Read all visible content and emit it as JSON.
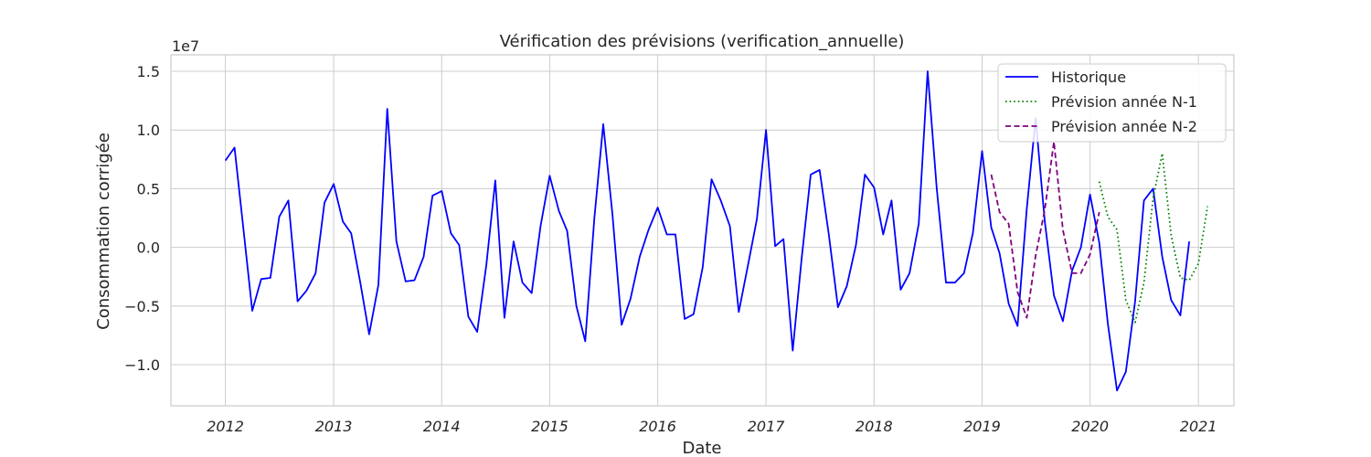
{
  "chart_data": {
    "type": "line",
    "title": "Vérification des prévisions (verification_annuelle)",
    "xlabel": "Date",
    "ylabel": "Consommation corrigée",
    "y_offset_label": "1e7",
    "xlim": [
      "2011-07-01",
      "2021-05-01"
    ],
    "ylim": [
      -1.35,
      1.64
    ],
    "x_ticks": [
      "2012",
      "2013",
      "2014",
      "2015",
      "2016",
      "2017",
      "2018",
      "2019",
      "2020",
      "2021"
    ],
    "y_ticks": [
      -1.0,
      -0.5,
      0.0,
      0.5,
      1.0,
      1.5
    ],
    "y_tick_labels": [
      "−1.0",
      "−0.5",
      "0.0",
      "0.5",
      "1.0",
      "1.5"
    ],
    "grid": true,
    "legend_position": "top-right",
    "series": [
      {
        "name": "Historique",
        "color": "#0000ff",
        "style": "solid",
        "start": "2012-01",
        "values": [
          0.74,
          0.85,
          0.18,
          -0.54,
          -0.27,
          -0.26,
          0.26,
          0.4,
          -0.46,
          -0.37,
          -0.22,
          0.38,
          0.54,
          0.22,
          0.12,
          -0.3,
          -0.74,
          -0.32,
          1.18,
          0.05,
          -0.29,
          -0.28,
          -0.08,
          0.44,
          0.48,
          0.12,
          0.02,
          -0.59,
          -0.72,
          -0.15,
          0.57,
          -0.6,
          0.05,
          -0.3,
          -0.39,
          0.18,
          0.61,
          0.31,
          0.14,
          -0.5,
          -0.8,
          0.25,
          1.05,
          0.28,
          -0.66,
          -0.44,
          -0.08,
          0.15,
          0.34,
          0.11,
          0.11,
          -0.61,
          -0.57,
          -0.17,
          0.58,
          0.4,
          0.18,
          -0.55,
          -0.15,
          0.24,
          1.0,
          0.01,
          0.07,
          -0.88,
          -0.1,
          0.62,
          0.66,
          0.11,
          -0.51,
          -0.33,
          0.02,
          0.62,
          0.51,
          0.11,
          0.4,
          -0.36,
          -0.22,
          0.2,
          1.5,
          0.5,
          -0.3,
          -0.3,
          -0.22,
          0.12,
          0.82,
          0.17,
          -0.05,
          -0.48,
          -0.67,
          0.33,
          1.1,
          0.22,
          -0.41,
          -0.63,
          -0.2,
          0.0,
          0.45,
          0.04,
          -0.65,
          -1.22,
          -1.06,
          -0.46,
          0.4,
          0.5,
          -0.08,
          -0.45,
          -0.58,
          0.05
        ]
      },
      {
        "name": "Prévision année N-1",
        "color": "#008000",
        "style": "dotted",
        "start": "2020-02",
        "values": [
          0.56,
          0.26,
          0.15,
          -0.45,
          -0.64,
          -0.3,
          0.42,
          0.8,
          0.1,
          -0.26,
          -0.28,
          -0.14,
          0.35
        ]
      },
      {
        "name": "Prévision année N-2",
        "color": "#800080",
        "style": "dashed",
        "start": "2019-02",
        "values": [
          0.62,
          0.3,
          0.2,
          -0.38,
          -0.6,
          -0.07,
          0.32,
          0.9,
          0.15,
          -0.22,
          -0.22,
          -0.06,
          0.3
        ]
      }
    ]
  }
}
